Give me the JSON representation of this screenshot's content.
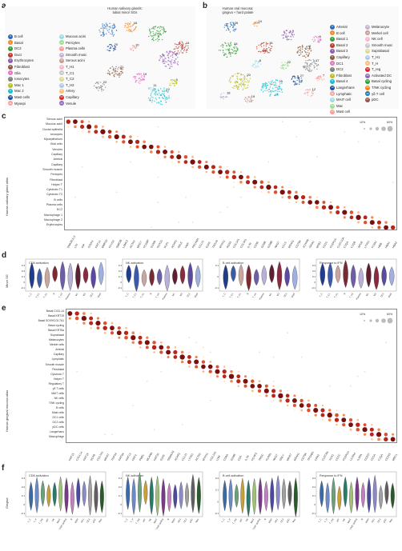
{
  "panels": {
    "a": "a",
    "b": "b",
    "c": "c",
    "d": "d",
    "e": "e",
    "f": "f"
  },
  "umap_a": {
    "title_line1": "Human salivary glands:",
    "title_line2": "labial minor SGs",
    "legend": [
      {
        "n": "0",
        "label": "B cell",
        "color": "#2e6db4"
      },
      {
        "n": "1",
        "label": "Basal",
        "color": "#f08c2a"
      },
      {
        "n": "2",
        "label": "DC2",
        "color": "#3a9d3a"
      },
      {
        "n": "3",
        "label": "Duct",
        "color": "#c0392b"
      },
      {
        "n": "4",
        "label": "Erythrocytes",
        "color": "#8e5bb0"
      },
      {
        "n": "5",
        "label": "Fibroblast",
        "color": "#8c5a3c"
      },
      {
        "n": "6",
        "label": "Glia",
        "color": "#e377c2"
      },
      {
        "n": "7",
        "label": "Ionocytes",
        "color": "#7f7f7f"
      },
      {
        "n": "8",
        "label": "Mac 1",
        "color": "#bcbd22"
      },
      {
        "n": "9",
        "label": "Mac 2",
        "color": "#17becf"
      },
      {
        "n": "10",
        "label": "Mast cells",
        "color": "#1f4e9a"
      },
      {
        "n": "11",
        "label": "Myoepi",
        "color": "#f4a6a0"
      },
      {
        "n": "12",
        "label": "Mucous acini",
        "color": "#9edae5"
      },
      {
        "n": "13",
        "label": "Pericytes",
        "color": "#98df8a"
      },
      {
        "n": "14",
        "label": "Plasma cells",
        "color": "#ff9896"
      },
      {
        "n": "15",
        "label": "Smooth musc",
        "color": "#c5b0d5"
      },
      {
        "n": "16",
        "label": "Serous acini",
        "color": "#c49c94"
      },
      {
        "n": "17",
        "label": "T_H1",
        "color": "#f7b6d2"
      },
      {
        "n": "18",
        "label": "T_C1",
        "color": "#c7c7c7"
      },
      {
        "n": "19",
        "label": "T_C2",
        "color": "#dbdb8d"
      },
      {
        "n": "20",
        "label": "T_H2",
        "color": "#aec7e8"
      },
      {
        "n": "21",
        "label": "Artery",
        "color": "#ffbb78"
      },
      {
        "n": "22",
        "label": "Capillary",
        "color": "#d62728"
      },
      {
        "n": "23",
        "label": "Venule",
        "color": "#9467bd"
      }
    ],
    "cluster_labels": [
      "5",
      "16",
      "1",
      "14",
      "17",
      "21",
      "19",
      "22",
      "9",
      "12",
      "20",
      "10",
      "11"
    ]
  },
  "umap_b": {
    "title_line1": "Human oral mucosa:",
    "title_line2": "gingiva + hard palate",
    "legend_left": [
      {
        "n": "0",
        "label": "Arterial",
        "color": "#2e6db4"
      },
      {
        "n": "1",
        "label": "B cell",
        "color": "#f08c2a"
      },
      {
        "n": "2",
        "label": "Basal 1",
        "color": "#3a9d3a"
      },
      {
        "n": "3",
        "label": "Basal 2",
        "color": "#c0392b"
      },
      {
        "n": "4",
        "label": "Basal 3",
        "color": "#8e5bb0"
      },
      {
        "n": "5",
        "label": "Capillary",
        "color": "#8c5a3c"
      },
      {
        "n": "6",
        "label": "DC1",
        "color": "#e377c2"
      },
      {
        "n": "7",
        "label": "DC2",
        "color": "#7f7f7f"
      },
      {
        "n": "8",
        "label": "Fibroblast",
        "color": "#bcbd22"
      },
      {
        "n": "9",
        "label": "Basal 4",
        "color": "#17becf"
      },
      {
        "n": "10",
        "label": "Langerhans",
        "color": "#1f4e9a"
      },
      {
        "n": "11",
        "label": "Lymphatic",
        "color": "#f4a6a0"
      },
      {
        "n": "12",
        "label": "MAIT cell",
        "color": "#9edae5"
      },
      {
        "n": "13",
        "label": "Mac",
        "color": "#98df8a"
      },
      {
        "n": "14",
        "label": "Mast cell",
        "color": "#ff9896"
      }
    ],
    "legend_right": [
      {
        "n": "15",
        "label": "Melanocyte",
        "color": "#c5b0d5"
      },
      {
        "n": "16",
        "label": "Merkel cell",
        "color": "#c49c94"
      },
      {
        "n": "17",
        "label": "NK cell",
        "color": "#f7b6d2"
      },
      {
        "n": "18",
        "label": "Smooth musc",
        "color": "#c7c7c7"
      },
      {
        "n": "19",
        "label": "Suprabasal",
        "color": "#dbdb8d"
      },
      {
        "n": "20",
        "label": "T_H1",
        "color": "#aec7e8"
      },
      {
        "n": "21",
        "label": "T_H",
        "color": "#ffbb78"
      },
      {
        "n": "22",
        "label": "T_reg",
        "color": "#d62728"
      },
      {
        "n": "23",
        "label": "Activated DC",
        "color": "#9467bd"
      },
      {
        "n": "24",
        "label": "Basal cycling",
        "color": "#2ca02c"
      },
      {
        "n": "25",
        "label": "T/NK cycling",
        "color": "#ff7f0e"
      },
      {
        "n": "26",
        "label": "γδ T cell",
        "color": "#1f77b4"
      },
      {
        "n": "27",
        "label": "pDC",
        "color": "#8c564b"
      }
    ],
    "cluster_labels": [
      "26",
      "24",
      "14",
      "16",
      "9",
      "2",
      "6",
      "17",
      "20",
      "25",
      "27",
      "12",
      "8",
      "22",
      "7",
      "18",
      "19"
    ]
  },
  "dotplot_c": {
    "ylabel": "Human salivary gland atlas",
    "rows": [
      "Serous acini",
      "Mucous acini",
      "Ductal epithelia",
      "Ionocytes",
      "Myoepithelium",
      "Glial cells",
      "Venules",
      "Capillary",
      "Arterial",
      "Capillary",
      "Smooth muscle",
      "Pericytes",
      "Fibroblast",
      "Helper T",
      "Cytotoxic T1",
      "Cytotoxic T2",
      "B cells",
      "Plasma cells",
      "DC2",
      "Macrophage 1",
      "Macrophage 2",
      "Erythrocytes"
    ],
    "genes": [
      "DNASE1L3",
      "LTF",
      "PIP",
      "STATH",
      "KRT14",
      "MMP20",
      "FXYD2",
      "SMR3B",
      "LAMC2",
      "ACTA2",
      "MUC7",
      "FCGBP",
      "S100B",
      "SOX10",
      "PLP1",
      "ACKR1",
      "SELE",
      "VWF",
      "PECAM1",
      "CCL21",
      "GJA5",
      "TAGLN",
      "MYH11",
      "RGS5",
      "COL1A1",
      "COL3A1",
      "IL7R",
      "CD3E",
      "GZMK",
      "GZMB",
      "NKG7",
      "CCL5",
      "MS4A1",
      "CD79A",
      "JCHAIN",
      "IGHA1",
      "MZB1",
      "CD1C",
      "FCER1A",
      "CLEC10A",
      "C1QA",
      "C1QB",
      "APOE",
      "LYVE1",
      "F13A1",
      "HBB",
      "HBA1",
      "HBA2"
    ],
    "size_legend": [
      "10%",
      "60%"
    ]
  },
  "violin_d": {
    "ylabel": "Minor SG",
    "panels": [
      {
        "title": "CD8 activation",
        "yticks": [
          "0.3",
          "0.2",
          "0.1",
          "0",
          "-0.1"
        ]
      },
      {
        "title": "NK activation",
        "yticks": [
          "0.3",
          "0.2",
          "0.1",
          "0",
          "-0.1"
        ]
      },
      {
        "title": "B cell activation",
        "yticks": [
          "0.1",
          "0",
          "-0.1"
        ]
      },
      {
        "title": "Response to IFN",
        "yticks": [
          "0.3",
          "0.2",
          "0.1",
          "0",
          "-0.1"
        ]
      }
    ],
    "categories": [
      "T_C",
      "T_C1",
      "T_H1",
      "B",
      "T_H2",
      "Plasma",
      "M1",
      "M2",
      "DC2",
      "Mast"
    ],
    "colors": [
      "#1f3d8a",
      "#3b5ba8",
      "#c9a6a0",
      "#7a2a30",
      "#6d5ea8",
      "#b8b0d8",
      "#5e2030",
      "#8a2a40",
      "#5a4aa0",
      "#a0b0e0"
    ]
  },
  "dotplot_e": {
    "ylabel": "Human gingival mucosa atlas",
    "rows": [
      "Basal CXCL14",
      "Basal KRT19",
      "Basal SOX9/COL7A1",
      "Basal cycling",
      "Basal KRT6a",
      "Suprabasal",
      "Melanocytes",
      "Merkel cells",
      "Arterial",
      "Capillary",
      "Lymphatic",
      "Smooth muscle",
      "Fibroblast",
      "Cytotoxic T",
      "Helper T",
      "Regulatory T",
      "γδ T cells",
      "MAIT cells",
      "NK cells",
      "T/NK cycling",
      "B cells",
      "Mast cells",
      "DC1 cells",
      "DC2 cells",
      "pDC cells",
      "Langerhans",
      "Macrophage"
    ],
    "genes": [
      "KRT15",
      "CXCL14",
      "KRT19",
      "SOX9",
      "COL7A1",
      "MKI67",
      "TOP2A",
      "KRT6A",
      "KRT13",
      "KRT4",
      "PMEL",
      "MLANA",
      "KRT20",
      "GJA5",
      "SEMA3G",
      "ACKR1",
      "CCL21",
      "LYVE1",
      "ACTA2",
      "MYH11",
      "COL1A1",
      "LUM",
      "CD8A",
      "GZMK",
      "CD4",
      "IL7R",
      "FOXP3",
      "TRDC",
      "KLRB1",
      "NKG7",
      "GNLY",
      "MKI67",
      "MS4A1",
      "CD79A",
      "TPSAB1",
      "CPA3",
      "CLEC9A",
      "XCR1",
      "CD1C",
      "FCER1A",
      "LILRA4",
      "IL3RA",
      "CD207",
      "CD1A",
      "C1QA",
      "CD163",
      "MRC1"
    ],
    "size_legend": [
      "10%",
      "60%"
    ]
  },
  "violin_f": {
    "ylabel": "Gingiva",
    "panels": [
      {
        "title": "CD8 activation",
        "yticks": [
          "0.3",
          "0.2",
          "0.1",
          "0",
          "-0.1"
        ]
      },
      {
        "title": "NK activation",
        "yticks": [
          "0.3",
          "0.2",
          "0.1",
          "0",
          "-0.1"
        ]
      },
      {
        "title": "B cell activation",
        "yticks": [
          "0.2",
          "0.1",
          "0",
          "-0.1"
        ]
      },
      {
        "title": "Response to IFN",
        "yticks": [
          "0.3",
          "0.2",
          "0.1",
          "0",
          "-0.1"
        ]
      }
    ],
    "categories": [
      "T_C",
      "T_H",
      "T_reg",
      "γδT",
      "NK",
      "MAIT",
      "T/NK cycling",
      "B",
      "Mast",
      "DC1",
      "DC2",
      "pDC",
      "Mac"
    ],
    "colors": [
      "#3a6aa8",
      "#6a8ac8",
      "#6aa07a",
      "#c8a03a",
      "#2a7a6a",
      "#a0c07a",
      "#7a3a8a",
      "#c080c0",
      "#4a4aa0",
      "#8a8ac8",
      "#a0a0a0",
      "#606060",
      "#2a5a2a"
    ]
  }
}
